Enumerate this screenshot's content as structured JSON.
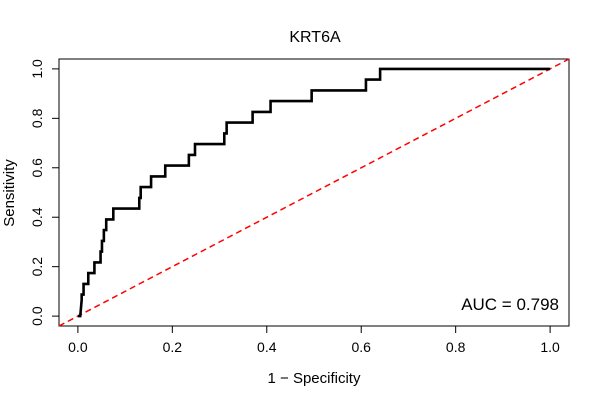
{
  "chart_data": {
    "type": "line",
    "title": "KRT6A",
    "xlabel": "1 − Specificity",
    "ylabel": "Sensitivity",
    "xlim": [
      -0.04,
      1.04
    ],
    "ylim": [
      -0.04,
      1.04
    ],
    "x_ticks": [
      0.0,
      0.2,
      0.4,
      0.6,
      0.8,
      1.0
    ],
    "x_tick_labels": [
      "0.0",
      "0.2",
      "0.4",
      "0.6",
      "0.8",
      "1.0"
    ],
    "y_ticks": [
      0.0,
      0.2,
      0.4,
      0.6,
      0.8,
      1.0
    ],
    "y_tick_labels": [
      "0.0",
      "0.2",
      "0.4",
      "0.6",
      "0.8",
      "1.0"
    ],
    "grid": false,
    "annotation": "AUC = 0.798",
    "series": [
      {
        "color": "#000000",
        "style": "solid",
        "x": [
          0.0,
          0.005,
          0.008,
          0.008,
          0.012,
          0.012,
          0.022,
          0.022,
          0.035,
          0.035,
          0.048,
          0.048,
          0.051,
          0.051,
          0.055,
          0.055,
          0.06,
          0.06,
          0.075,
          0.075,
          0.13,
          0.13,
          0.133,
          0.133,
          0.138,
          0.138,
          0.155,
          0.155,
          0.16,
          0.16,
          0.185,
          0.185,
          0.235,
          0.235,
          0.242,
          0.242,
          0.248,
          0.248,
          0.31,
          0.31,
          0.315,
          0.315,
          0.322,
          0.322,
          0.37,
          0.37,
          0.408,
          0.408,
          0.495,
          0.495,
          0.61,
          0.61,
          0.64,
          0.64,
          1.0
        ],
        "y": [
          0.0,
          0.0,
          0.065,
          0.087,
          0.087,
          0.13,
          0.13,
          0.174,
          0.174,
          0.217,
          0.217,
          0.261,
          0.261,
          0.304,
          0.304,
          0.348,
          0.348,
          0.391,
          0.391,
          0.435,
          0.435,
          0.478,
          0.478,
          0.522,
          0.522,
          0.522,
          0.522,
          0.565,
          0.565,
          0.565,
          0.565,
          0.609,
          0.609,
          0.652,
          0.652,
          0.652,
          0.652,
          0.696,
          0.696,
          0.739,
          0.739,
          0.783,
          0.783,
          0.783,
          0.783,
          0.826,
          0.826,
          0.87,
          0.87,
          0.913,
          0.913,
          0.957,
          0.957,
          1.0,
          1.0
        ]
      },
      {
        "color": "#ff0000",
        "style": "dashed",
        "x": [
          -0.04,
          1.04
        ],
        "y": [
          -0.04,
          1.04
        ]
      }
    ]
  }
}
